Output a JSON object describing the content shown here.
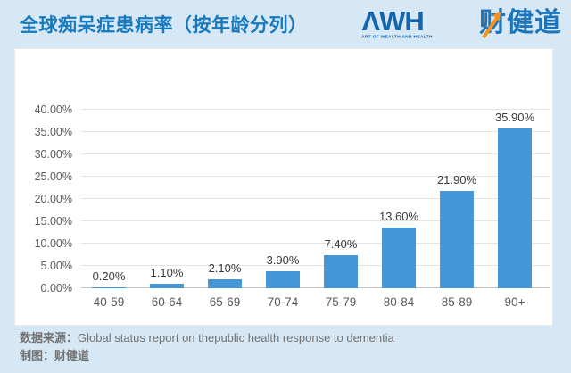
{
  "header": {
    "title": "全球痴呆症患病率（按年龄分列）",
    "logo": {
      "wordmark": "ΛWH",
      "tagline": "ART OF WEALTH AND HEALTH",
      "brand_cn": "财健道"
    }
  },
  "colors": {
    "background": "#d6e8f5",
    "title_blue": "#1878bd",
    "logo_blue": "#1565ae",
    "brand_blue": "#1c74ba",
    "arrow_orange": "#f6921e",
    "bar_blue": "#4697d8",
    "gridline": "#e4e4e4",
    "baseline": "#c6c6c6",
    "axis_text": "#5b5b5b",
    "data_label_text": "#3a3a3a",
    "footer_text": "#717171"
  },
  "chart_data": {
    "type": "bar",
    "title": "全球痴呆症患病率（按年龄分列）",
    "categories": [
      "40-59",
      "60-64",
      "65-69",
      "70-74",
      "75-79",
      "80-84",
      "85-89",
      "90+"
    ],
    "values": [
      0.2,
      1.1,
      2.1,
      3.9,
      7.4,
      13.6,
      21.9,
      35.9
    ],
    "value_labels": [
      "0.20%",
      "1.10%",
      "2.10%",
      "3.90%",
      "7.40%",
      "13.60%",
      "21.90%",
      "35.90%"
    ],
    "y_tick_labels": [
      "0.00%",
      "5.00%",
      "10.00%",
      "15.00%",
      "20.00%",
      "25.00%",
      "30.00%",
      "35.00%",
      "40.00%"
    ],
    "ylim": [
      0,
      40
    ],
    "y_step": 5,
    "xlabel": "",
    "ylabel": "",
    "grid": "horizontal",
    "legend": "none"
  },
  "footer": {
    "source_label": "数据来源：",
    "source_text": "Global status report on thepublic health response to dementia",
    "credit_label": "制图：",
    "credit_text": "财健道"
  }
}
